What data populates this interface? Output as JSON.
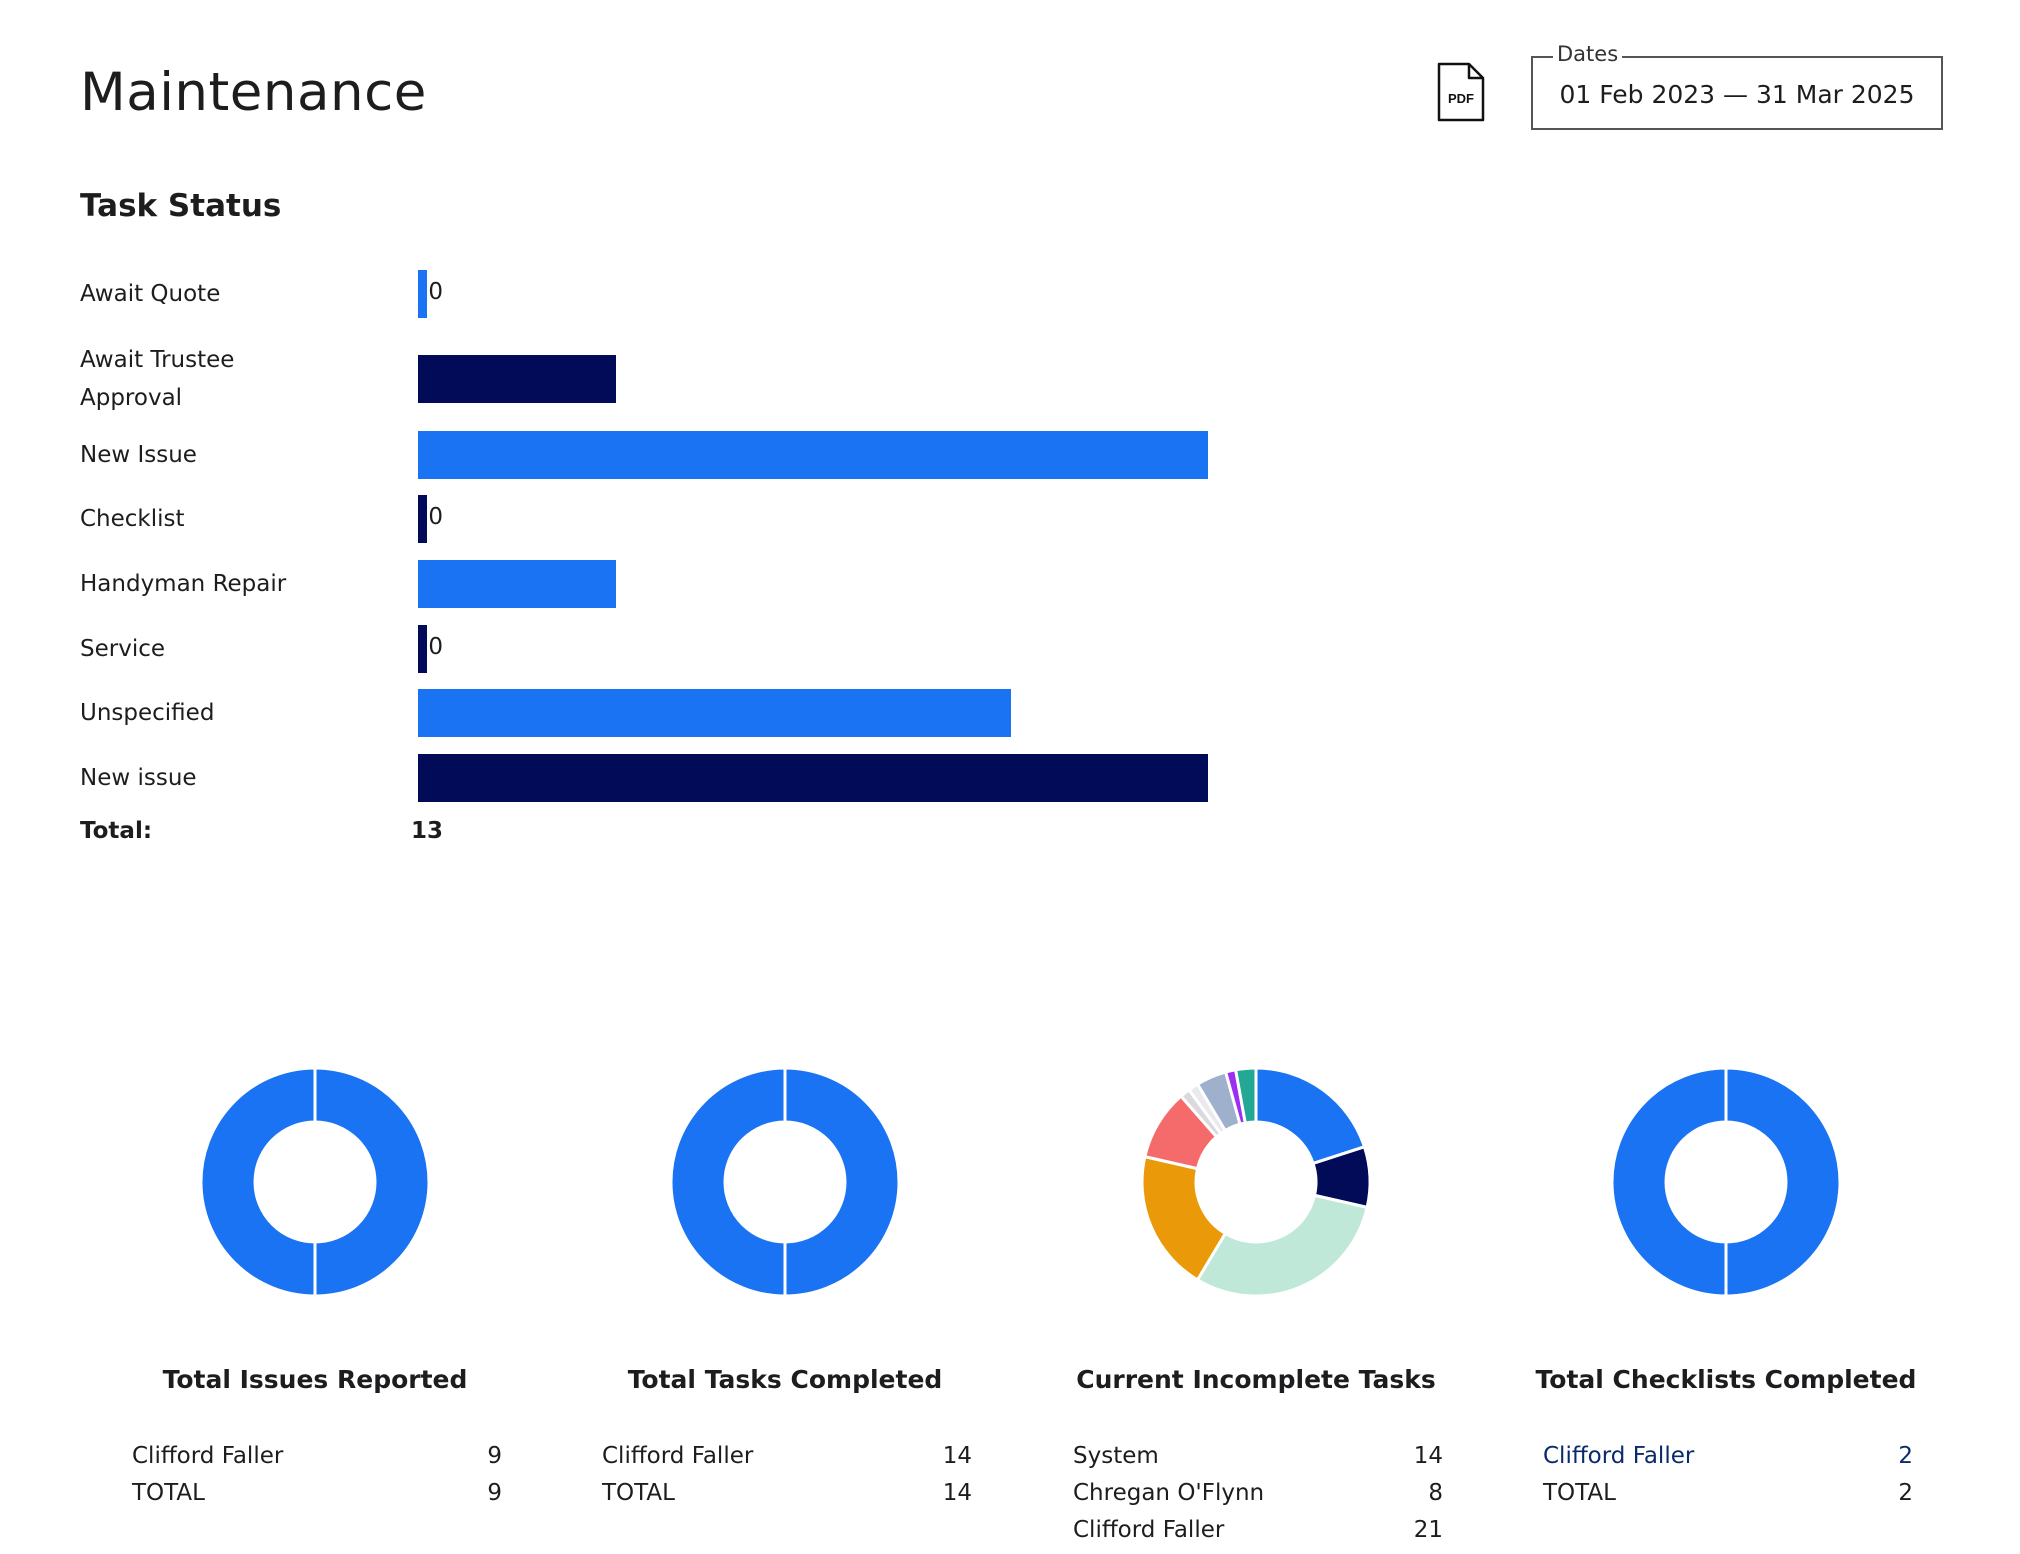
{
  "page": {
    "title": "Maintenance"
  },
  "header": {
    "pdf_label": "PDF",
    "pdf_icon": "pdf-file-icon",
    "dates_legend": "Dates",
    "dates_value": "01 Feb 2023 — 31 Mar 2025"
  },
  "colors": {
    "blue": "#1a73f2",
    "navy": "#020b57"
  },
  "task_status": {
    "title": "Task Status",
    "total_label": "Total:",
    "total_value": "13",
    "rows": [
      {
        "label": "Await Quote",
        "count": "0"
      },
      {
        "label": "Await Trustee Approval",
        "count": "1"
      },
      {
        "label": "New Issue",
        "count": "4"
      },
      {
        "label": "Checklist",
        "count": "0"
      },
      {
        "label": "Handyman Repair",
        "count": "1"
      },
      {
        "label": "Service",
        "count": "0"
      },
      {
        "label": "Unspecified",
        "count": "3"
      },
      {
        "label": "New issue",
        "count": "4"
      }
    ]
  },
  "summaries": [
    {
      "title": "Total Issues Reported",
      "rows": [
        {
          "name": "Clifford Faller",
          "value": "9"
        },
        {
          "name": "TOTAL",
          "value": "9"
        }
      ]
    },
    {
      "title": "Total Tasks Completed",
      "rows": [
        {
          "name": "Clifford Faller",
          "value": "14"
        },
        {
          "name": "TOTAL",
          "value": "14"
        }
      ]
    },
    {
      "title": "Current Incomplete Tasks",
      "rows": [
        {
          "name": "System",
          "value": "14"
        },
        {
          "name": "Chregan O'Flynn",
          "value": "8"
        },
        {
          "name": "Clifford Faller",
          "value": "21"
        }
      ]
    },
    {
      "title": "Total Checklists Completed",
      "rows": [
        {
          "name": "Clifford Faller",
          "value": "2"
        },
        {
          "name": "TOTAL",
          "value": "2"
        }
      ]
    }
  ],
  "chart_data": [
    {
      "type": "bar",
      "orientation": "horizontal",
      "title": "Task Status",
      "categories": [
        "Await Quote",
        "Await Trustee Approval",
        "New Issue",
        "Checklist",
        "Handyman Repair",
        "Service",
        "Unspecified",
        "New issue"
      ],
      "values": [
        0,
        1,
        4,
        0,
        1,
        0,
        3,
        4
      ],
      "colors": [
        "#1a73f2",
        "#020b57",
        "#1a73f2",
        "#020b57",
        "#1a73f2",
        "#020b57",
        "#1a73f2",
        "#020b57"
      ],
      "xlim": [
        0,
        4
      ]
    },
    {
      "type": "pie",
      "donut": true,
      "title": "Total Issues Reported",
      "values": [
        9
      ],
      "colors": [
        "#1a73f2"
      ]
    },
    {
      "type": "pie",
      "donut": true,
      "title": "Total Tasks Completed",
      "values": [
        14
      ],
      "colors": [
        "#1a73f2"
      ]
    },
    {
      "type": "pie",
      "donut": true,
      "title": "Current Incomplete Tasks",
      "values": [
        14,
        6,
        21,
        14,
        7,
        1,
        1,
        3,
        1,
        2
      ],
      "colors": [
        "#1a73f2",
        "#020b57",
        "#bfe8d9",
        "#ea9a08",
        "#f56b6b",
        "#d9d9de",
        "#e9e9ee",
        "#9fb0cc",
        "#9b30f0",
        "#22a894"
      ]
    },
    {
      "type": "pie",
      "donut": true,
      "title": "Total Checklists Completed",
      "values": [
        2
      ],
      "colors": [
        "#1a73f2"
      ]
    }
  ]
}
